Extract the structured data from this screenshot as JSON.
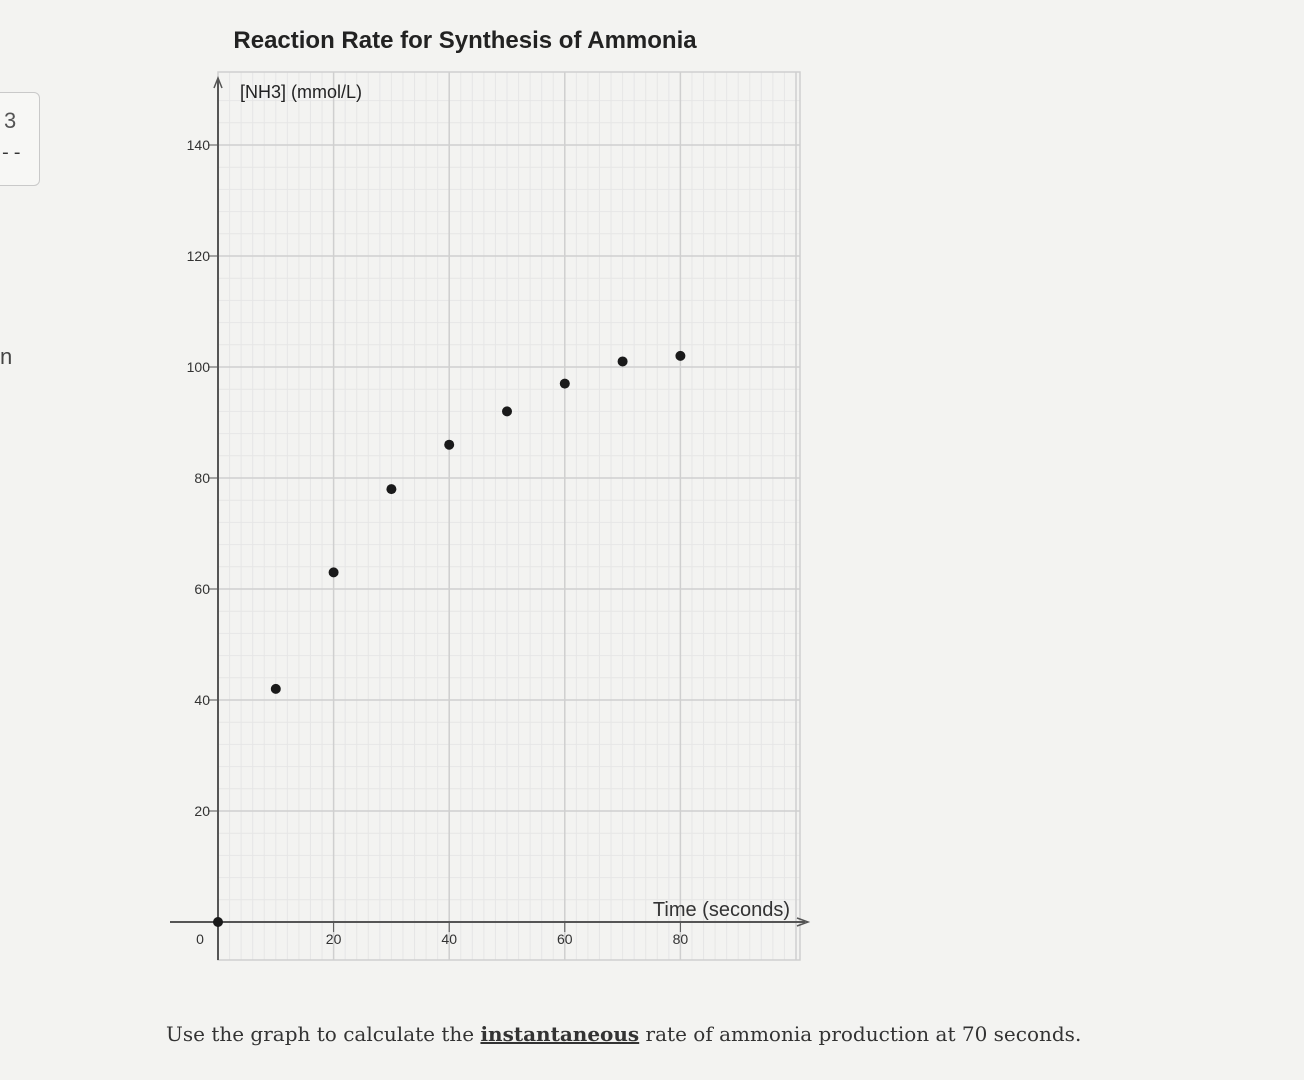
{
  "sidebar": {
    "tab_number": "3",
    "tab_dash": "--",
    "fragment": "n"
  },
  "chart_data": {
    "type": "scatter",
    "title": "Reaction Rate for Synthesis of Ammonia",
    "ylabel": "[NH3] (mmol/L)",
    "xlabel": "Time (seconds)",
    "xlim": [
      0,
      100
    ],
    "ylim": [
      0,
      150
    ],
    "x_ticks": [
      "0",
      "20",
      "40",
      "60",
      "80"
    ],
    "y_ticks": [
      "20",
      "40",
      "60",
      "80",
      "100",
      "120",
      "140"
    ],
    "grid": true,
    "points": [
      {
        "x": 0,
        "y": 0
      },
      {
        "x": 10,
        "y": 42
      },
      {
        "x": 20,
        "y": 63
      },
      {
        "x": 30,
        "y": 78
      },
      {
        "x": 40,
        "y": 86
      },
      {
        "x": 50,
        "y": 92
      },
      {
        "x": 60,
        "y": 97
      },
      {
        "x": 70,
        "y": 101
      },
      {
        "x": 80,
        "y": 102
      }
    ]
  },
  "question": {
    "before": "Use the graph to calculate the ",
    "emphasis": "instantaneous",
    "after": " rate of ammonia production at 70 seconds."
  },
  "colors": {
    "point": "#1a1a1a",
    "major_grid": "#cfcfcf",
    "minor_grid": "#e6e6e6",
    "axis": "#555555"
  }
}
